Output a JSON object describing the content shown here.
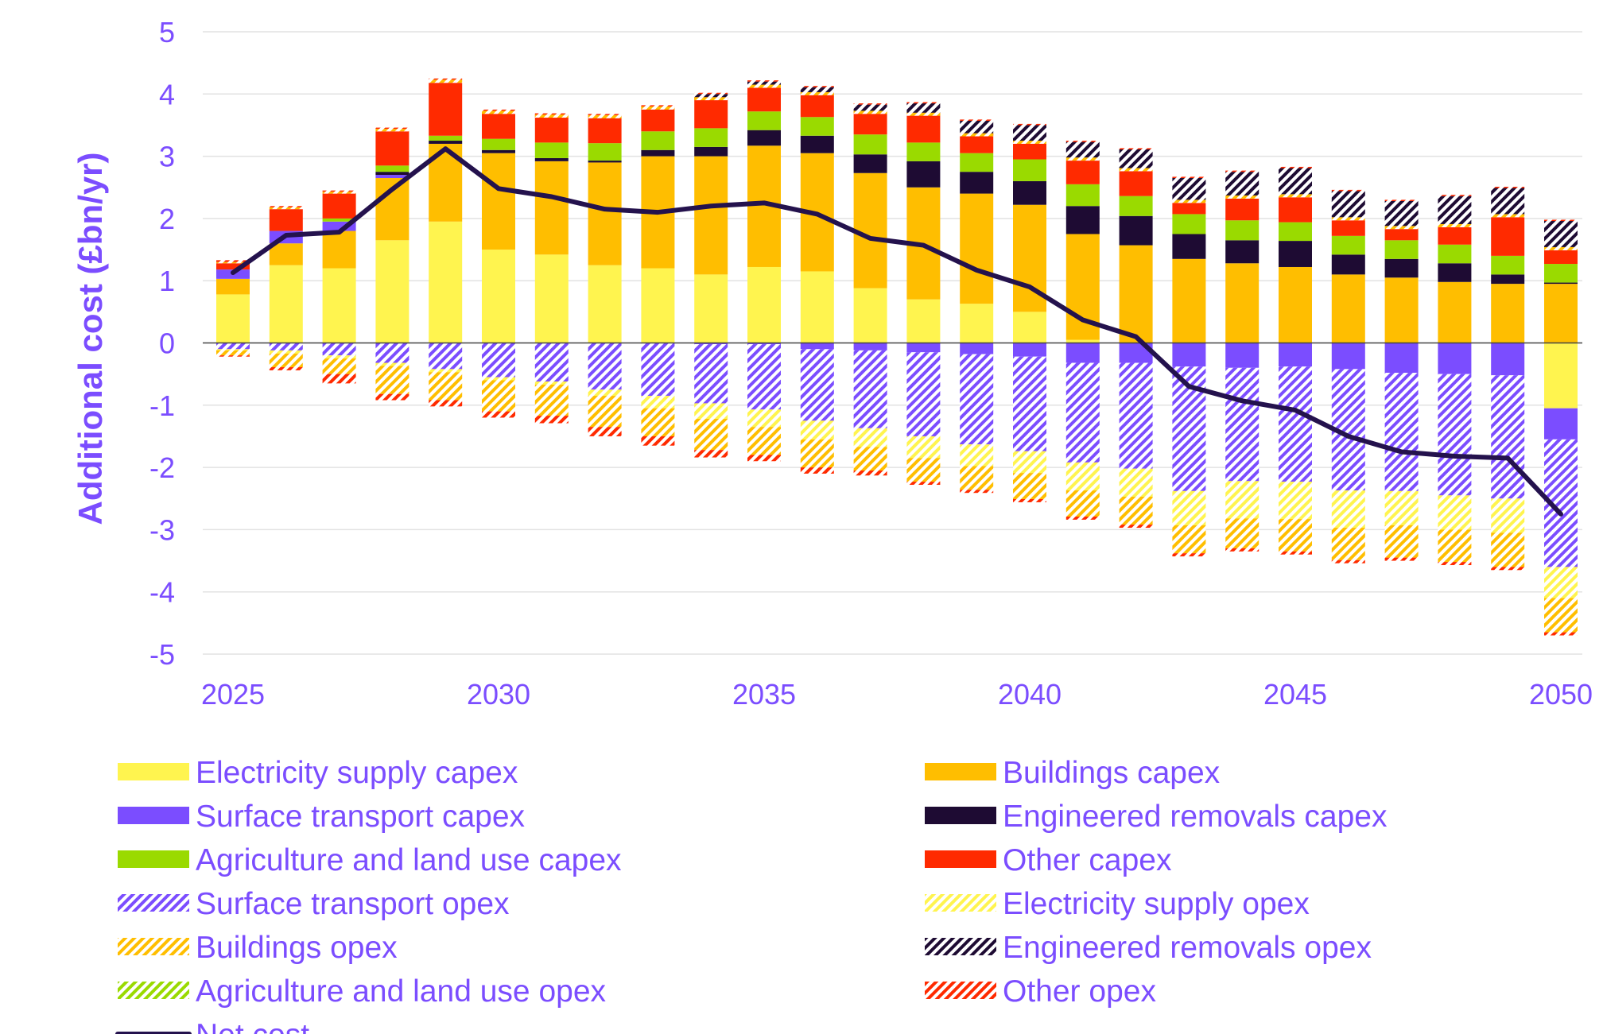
{
  "chart_data": {
    "type": "bar",
    "stacked": true,
    "title": "",
    "xlabel": "",
    "ylabel": "Additional cost (£bn/yr)",
    "ylim": [
      -5,
      5
    ],
    "yticks": [
      5,
      4,
      3,
      2,
      1,
      0,
      -1,
      -2,
      -3,
      -4,
      -5
    ],
    "xtick_labels": [
      "2025",
      "2030",
      "2035",
      "2040",
      "2045",
      "2050"
    ],
    "grid": true,
    "legend_position": "bottom",
    "categories": [
      2025,
      2026,
      2027,
      2028,
      2029,
      2030,
      2031,
      2032,
      2033,
      2034,
      2035,
      2036,
      2037,
      2038,
      2039,
      2040,
      2041,
      2042,
      2043,
      2044,
      2045,
      2046,
      2047,
      2048,
      2049,
      2050
    ],
    "series": [
      {
        "name": "Electricity supply capex",
        "color": "#FFF44F",
        "pattern": "solid",
        "values": [
          0.78,
          1.25,
          1.2,
          1.65,
          1.95,
          1.5,
          1.42,
          1.25,
          1.2,
          1.1,
          1.22,
          1.15,
          0.88,
          0.7,
          0.63,
          0.5,
          0.05,
          0,
          0,
          0,
          0,
          0,
          0,
          0,
          0,
          0
        ]
      },
      {
        "name": "Buildings capex",
        "color": "#FFBE00",
        "pattern": "solid",
        "values": [
          0.25,
          0.35,
          0.6,
          1.0,
          1.25,
          1.55,
          1.5,
          1.65,
          1.8,
          1.9,
          1.95,
          1.9,
          1.85,
          1.8,
          1.77,
          1.72,
          1.7,
          1.57,
          1.35,
          1.28,
          1.22,
          1.1,
          1.05,
          0.98,
          0.95,
          0.95
        ]
      },
      {
        "name": "Surface transport capex",
        "color": "#7B4DFF",
        "pattern": "solid",
        "values": [
          0.15,
          0.2,
          0.15,
          0.05,
          0,
          0,
          0,
          0,
          0,
          0,
          0,
          0,
          0,
          0,
          0,
          0,
          0,
          0,
          0,
          0,
          0,
          0,
          0,
          0,
          0,
          0
        ]
      },
      {
        "name": "Engineered removals capex",
        "color": "#1E0B33",
        "pattern": "solid",
        "values": [
          0,
          0,
          0,
          0.05,
          0.05,
          0.05,
          0.05,
          0.03,
          0.1,
          0.15,
          0.25,
          0.28,
          0.3,
          0.42,
          0.35,
          0.38,
          0.45,
          0.47,
          0.4,
          0.37,
          0.42,
          0.32,
          0.3,
          0.3,
          0.15,
          0.02
        ]
      },
      {
        "name": "Agriculture and land use capex",
        "color": "#9ADA00",
        "pattern": "solid",
        "values": [
          0,
          0,
          0.05,
          0.1,
          0.08,
          0.18,
          0.25,
          0.28,
          0.3,
          0.3,
          0.3,
          0.3,
          0.32,
          0.3,
          0.3,
          0.35,
          0.35,
          0.32,
          0.32,
          0.32,
          0.3,
          0.3,
          0.3,
          0.3,
          0.3,
          0.3
        ]
      },
      {
        "name": "Other capex",
        "color": "#FF2A00",
        "pattern": "solid",
        "values": [
          0.1,
          0.35,
          0.4,
          0.55,
          0.85,
          0.45,
          0.45,
          0.45,
          0.4,
          0.5,
          0.38,
          0.4,
          0.38,
          0.48,
          0.32,
          0.3,
          0.38,
          0.4,
          0.18,
          0.35,
          0.4,
          0.25,
          0.18,
          0.28,
          0.62,
          0.22
        ]
      },
      {
        "name": "Surface transport opex",
        "color": "#7B4DFF",
        "pattern": "hatch",
        "values": [
          0,
          0,
          0,
          0,
          0,
          -0.05,
          -0.05,
          -0.05,
          -0.05,
          -0.05,
          0,
          -0.05,
          -0.05,
          -0.05,
          -0.05,
          -0.05,
          0,
          0,
          0,
          0,
          0,
          0,
          0,
          0,
          0,
          0
        ]
      },
      {
        "name": "Electricity supply opex",
        "color": "#FFF44F",
        "pattern": "hatch",
        "values": [
          0,
          0,
          0,
          0,
          0,
          0,
          0,
          0,
          0,
          0,
          0,
          0,
          0,
          0,
          0,
          0,
          0,
          0,
          0,
          0,
          0,
          0,
          0,
          0,
          0,
          0
        ]
      },
      {
        "name": "Buildings opex",
        "color": "#FFBE00",
        "pattern": "hatch",
        "values": [
          0.02,
          0.03,
          0.03,
          0.04,
          0.05,
          0.05,
          0.05,
          0.05,
          0.05,
          0.05,
          0.05,
          0.05,
          0.05,
          0.05,
          0.05,
          0.05,
          0.05,
          0.05,
          0.05,
          0.05,
          0.05,
          0.05,
          0.05,
          0.05,
          0.05,
          0.05
        ]
      },
      {
        "name": "Engineered removals opex",
        "color": "#1E0B33",
        "pattern": "hatch",
        "values": [
          0,
          0,
          0,
          0,
          0,
          0,
          0,
          0,
          0,
          0.05,
          0.05,
          0.08,
          0.1,
          0.15,
          0.2,
          0.25,
          0.25,
          0.3,
          0.35,
          0.38,
          0.42,
          0.42,
          0.4,
          0.45,
          0.42,
          0.42
        ]
      },
      {
        "name": "Agriculture and land use opex",
        "color": "#9ADA00",
        "pattern": "hatch",
        "values": [
          0,
          0,
          0,
          0,
          0,
          0,
          0,
          0,
          0,
          0,
          0,
          0,
          0,
          0,
          0,
          0,
          0,
          0,
          0,
          0,
          0,
          0,
          0,
          0,
          0,
          0
        ]
      },
      {
        "name": "Other opex",
        "color": "#FF2A00",
        "pattern": "hatch",
        "values": [
          0.03,
          0.02,
          0.02,
          0.02,
          0.02,
          0.02,
          0.02,
          0.02,
          0.02,
          0.02,
          0.02,
          0.02,
          0.02,
          0.02,
          0.02,
          0.02,
          0.02,
          0.02,
          0.02,
          0.02,
          0.02,
          0.02,
          0.02,
          0.02,
          0.02,
          0.02
        ]
      }
    ],
    "negative_series": [
      {
        "name": "Electricity supply capex",
        "color": "#FFF44F",
        "pattern": "solid",
        "values": [
          0,
          0,
          0,
          0,
          0,
          0,
          0,
          0,
          0,
          0,
          0,
          0,
          0,
          0,
          0,
          0,
          0,
          0,
          0,
          0,
          0,
          0,
          0,
          0,
          0,
          -1.05
        ]
      },
      {
        "name": "Surface transport capex",
        "color": "#7B4DFF",
        "pattern": "solid",
        "values": [
          0,
          0,
          0,
          0,
          0,
          0,
          0,
          0,
          0,
          -0.02,
          -0.02,
          -0.1,
          -0.12,
          -0.15,
          -0.18,
          -0.22,
          -0.32,
          -0.32,
          -0.38,
          -0.4,
          -0.38,
          -0.42,
          -0.48,
          -0.5,
          -0.52,
          -0.5
        ]
      },
      {
        "name": "Surface transport opex",
        "color": "#7B4DFF",
        "pattern": "hatch",
        "values": [
          -0.1,
          -0.12,
          -0.2,
          -0.32,
          -0.42,
          -0.55,
          -0.62,
          -0.75,
          -0.85,
          -0.95,
          -1.05,
          -1.15,
          -1.25,
          -1.35,
          -1.45,
          -1.52,
          -1.6,
          -1.7,
          -2.0,
          -1.82,
          -1.85,
          -1.95,
          -1.9,
          -1.95,
          -1.98,
          -2.05
        ]
      },
      {
        "name": "Electricity supply opex",
        "color": "#FFF44F",
        "pattern": "hatch",
        "values": [
          -0.02,
          -0.05,
          -0.05,
          -0.05,
          -0.05,
          -0.05,
          -0.05,
          -0.1,
          -0.2,
          -0.25,
          -0.28,
          -0.3,
          -0.3,
          -0.35,
          -0.35,
          -0.35,
          -0.45,
          -0.45,
          -0.55,
          -0.6,
          -0.6,
          -0.6,
          -0.55,
          -0.55,
          -0.55,
          -0.5
        ]
      },
      {
        "name": "Buildings opex",
        "color": "#FFBE00",
        "pattern": "hatch",
        "values": [
          -0.08,
          -0.22,
          -0.25,
          -0.45,
          -0.45,
          -0.5,
          -0.5,
          -0.5,
          -0.45,
          -0.5,
          -0.45,
          -0.45,
          -0.38,
          -0.38,
          -0.38,
          -0.42,
          -0.42,
          -0.45,
          -0.45,
          -0.48,
          -0.52,
          -0.52,
          -0.52,
          -0.52,
          -0.55,
          -0.55
        ]
      },
      {
        "name": "Other opex",
        "color": "#FF2A00",
        "pattern": "hatch",
        "values": [
          -0.02,
          -0.05,
          -0.15,
          -0.1,
          -0.1,
          -0.1,
          -0.12,
          -0.15,
          -0.15,
          -0.12,
          -0.1,
          -0.1,
          -0.08,
          -0.05,
          -0.05,
          -0.05,
          -0.05,
          -0.05,
          -0.05,
          -0.05,
          -0.05,
          -0.05,
          -0.05,
          -0.05,
          -0.05,
          -0.05
        ]
      }
    ],
    "net_cost": {
      "name": "Net cost",
      "color": "#24124D",
      "values": [
        1.13,
        1.73,
        1.78,
        2.47,
        3.12,
        2.48,
        2.35,
        2.15,
        2.1,
        2.2,
        2.25,
        2.07,
        1.68,
        1.57,
        1.17,
        0.9,
        0.37,
        0.1,
        -0.7,
        -0.93,
        -1.08,
        -1.5,
        -1.75,
        -1.82,
        -1.85,
        -2.75
      ]
    },
    "legend": [
      "Electricity supply capex",
      "Buildings capex",
      "Surface transport capex",
      "Engineered removals capex",
      "Agriculture and land use capex",
      "Other capex",
      "Surface transport opex",
      "Electricity supply opex",
      "Buildings opex",
      "Engineered removals opex",
      "Agriculture and land use opex",
      "Other opex",
      "Net cost"
    ]
  }
}
